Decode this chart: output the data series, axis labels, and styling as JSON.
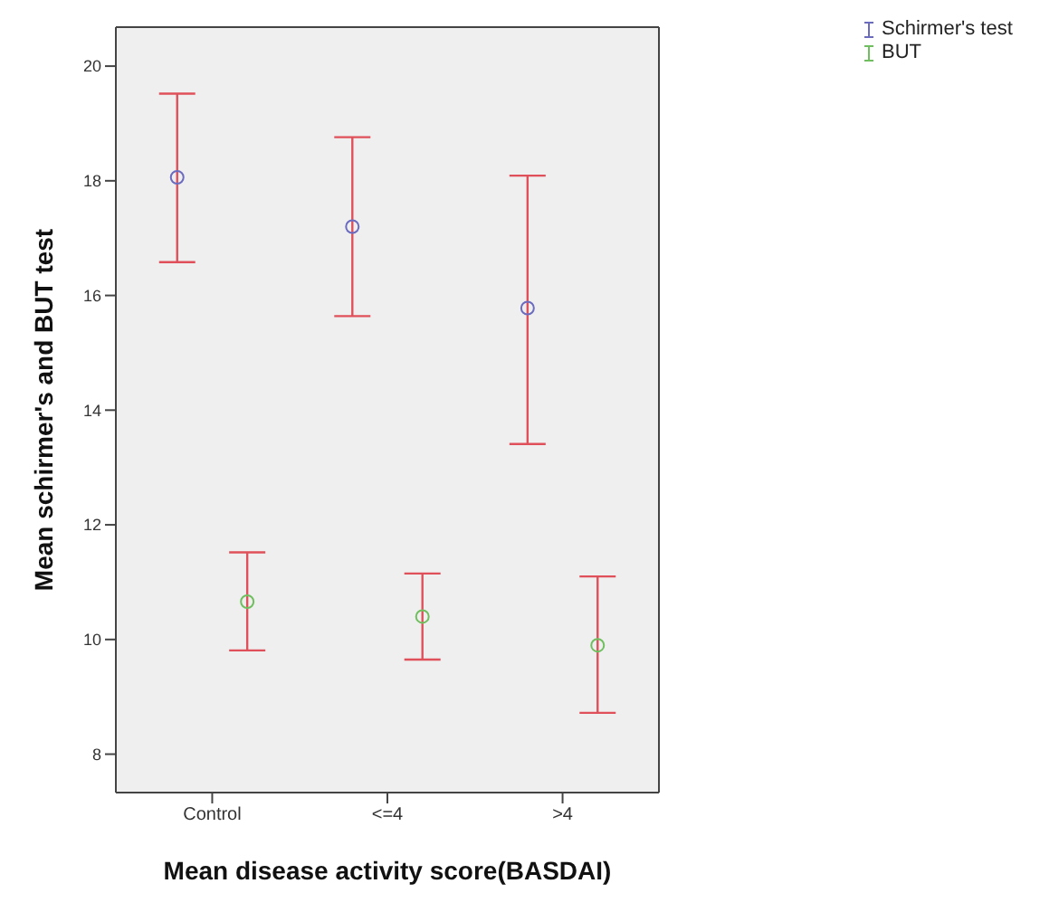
{
  "chart_data": {
    "type": "scatter",
    "xlabel": "Mean disease activity score(BASDAI)",
    "ylabel": "Mean schirmer's and BUT test",
    "categories": [
      "Control",
      "<=4",
      ">4"
    ],
    "series": [
      {
        "name": "Schirmer's test",
        "color": "#6b6bc0",
        "values": [
          18.06,
          17.2,
          15.78
        ],
        "errors": [
          [
            16.58,
            19.52
          ],
          [
            15.64,
            18.76
          ],
          [
            13.41,
            18.09
          ]
        ]
      },
      {
        "name": "BUT",
        "color": "#6fbf5f",
        "values": [
          10.66,
          10.4,
          9.9
        ],
        "errors": [
          [
            9.81,
            11.52
          ],
          [
            9.65,
            11.15
          ],
          [
            8.72,
            11.1
          ]
        ]
      }
    ],
    "ylim": [
      7.33,
      20.68
    ],
    "yticks": [
      8,
      10,
      12,
      14,
      16,
      18,
      20
    ],
    "marker": "circle",
    "legend": "top right"
  }
}
